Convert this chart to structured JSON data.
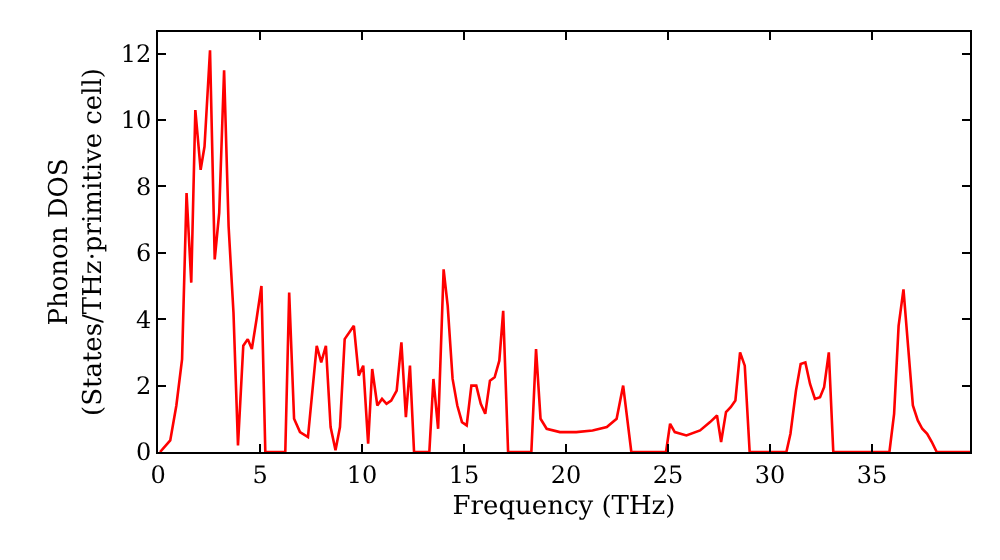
{
  "chart_data": {
    "type": "line",
    "xlabel": "Frequency (THz)",
    "ylabel": "Phonon DOS\n(States/THz·primitive cell)",
    "xlim": [
      0,
      39.8
    ],
    "ylim": [
      0,
      12.65
    ],
    "xticks": [
      0,
      5,
      10,
      15,
      20,
      25,
      30,
      35
    ],
    "yticks": [
      0,
      2,
      4,
      6,
      8,
      10,
      12
    ],
    "marker": "none",
    "line_style": "solid",
    "series": [
      {
        "color": "#ff0000",
        "x": [
          0.1,
          0.6,
          0.9,
          1.18,
          1.4,
          1.63,
          1.83,
          2.09,
          2.28,
          2.55,
          2.78,
          3.0,
          3.24,
          3.46,
          3.7,
          3.92,
          4.18,
          4.4,
          4.6,
          4.83,
          5.07,
          5.26,
          6.24,
          6.43,
          6.67,
          6.96,
          7.35,
          7.78,
          8.0,
          8.23,
          8.46,
          8.7,
          8.92,
          9.15,
          9.6,
          9.84,
          10.06,
          10.3,
          10.5,
          10.75,
          10.98,
          11.2,
          11.43,
          11.7,
          11.93,
          12.15,
          12.35,
          12.55,
          13.3,
          13.5,
          13.73,
          14.0,
          14.2,
          14.44,
          14.67,
          14.9,
          15.13,
          15.36,
          15.6,
          15.82,
          16.04,
          16.27,
          16.5,
          16.73,
          16.92,
          17.16,
          18.3,
          18.53,
          18.75,
          19.05,
          19.7,
          20.5,
          21.3,
          22.0,
          22.48,
          22.8,
          23.2,
          24.9,
          25.1,
          25.33,
          25.9,
          26.57,
          27.06,
          27.4,
          27.6,
          27.84,
          28.07,
          28.3,
          28.53,
          28.76,
          29.0,
          30.8,
          31.0,
          31.27,
          31.5,
          31.73,
          31.96,
          32.2,
          32.45,
          32.65,
          32.88,
          33.1,
          35.85,
          36.08,
          36.3,
          36.54,
          36.77,
          37.0,
          37.24,
          37.46,
          37.7,
          37.93,
          38.17,
          39.8
        ],
        "values": [
          0,
          0.35,
          1.4,
          2.8,
          7.8,
          5.1,
          10.3,
          8.5,
          9.2,
          12.1,
          5.8,
          7.2,
          11.5,
          6.8,
          4.2,
          0.2,
          3.2,
          3.4,
          3.1,
          4.0,
          5.0,
          0,
          0,
          4.8,
          1.0,
          0.6,
          0.45,
          3.2,
          2.7,
          3.2,
          0.75,
          0.05,
          0.75,
          3.4,
          3.8,
          2.3,
          2.6,
          0.25,
          2.5,
          1.4,
          1.6,
          1.45,
          1.55,
          1.85,
          3.3,
          1.05,
          2.6,
          0,
          0,
          2.2,
          0.7,
          5.5,
          4.4,
          2.2,
          1.4,
          0.9,
          0.8,
          2.0,
          2.0,
          1.45,
          1.15,
          2.15,
          2.25,
          2.75,
          4.25,
          0,
          0,
          3.1,
          1.0,
          0.7,
          0.6,
          0.6,
          0.65,
          0.75,
          1.0,
          2.0,
          0,
          0,
          0.85,
          0.6,
          0.5,
          0.65,
          0.9,
          1.1,
          0.3,
          1.2,
          1.35,
          1.55,
          3.0,
          2.6,
          0,
          0,
          0.55,
          1.85,
          2.65,
          2.7,
          2.05,
          1.6,
          1.65,
          1.95,
          3.0,
          0,
          0,
          1.15,
          3.8,
          4.9,
          3.15,
          1.4,
          0.95,
          0.7,
          0.55,
          0.3,
          0,
          0
        ]
      }
    ]
  }
}
